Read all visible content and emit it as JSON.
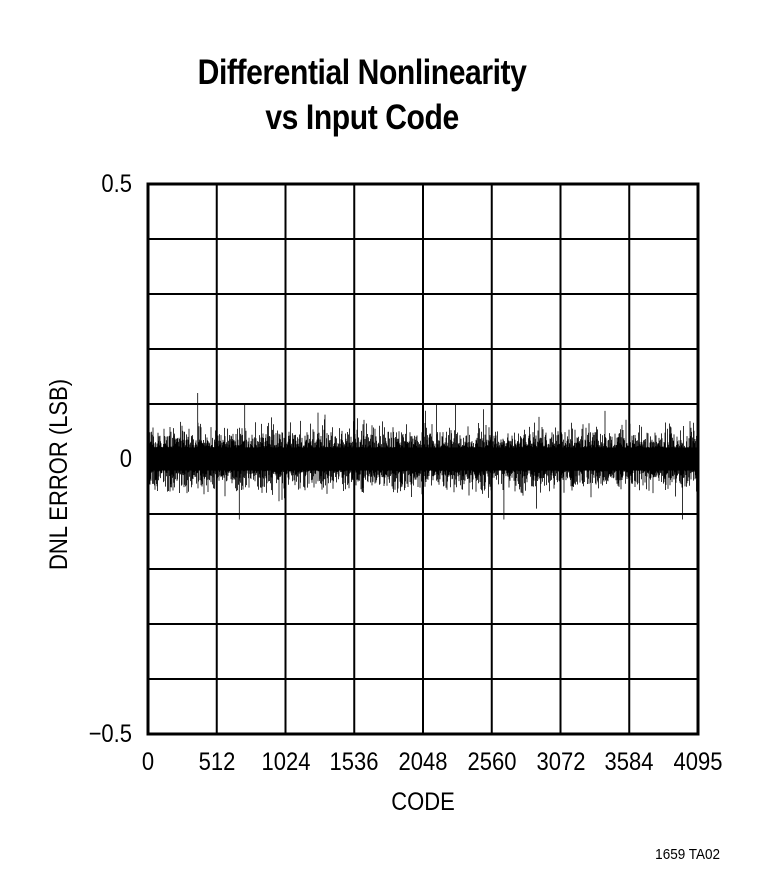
{
  "chart_data": {
    "type": "line",
    "title": "Differential Nonlinearity vs Input Code",
    "title_lines": [
      "Differential Nonlinearity",
      "vs Input Code"
    ],
    "xlabel": "CODE",
    "ylabel": "DNL ERROR (LSB)",
    "xlim": [
      0,
      4095
    ],
    "ylim": [
      -0.5,
      0.5
    ],
    "x_ticks": [
      0,
      512,
      1024,
      1536,
      2048,
      2560,
      3072,
      3584,
      4095
    ],
    "x_tick_labels": [
      "0",
      "512",
      "1024",
      "1536",
      "2048",
      "2560",
      "3072",
      "3584",
      "4095"
    ],
    "y_tick_labels": [
      {
        "value": 0.5,
        "label": "0.5"
      },
      {
        "value": 0,
        "label": "0"
      },
      {
        "value": -0.5,
        "label": "−0.5"
      }
    ],
    "grid": {
      "on": true,
      "x_divisions": 8,
      "y_divisions": 10
    },
    "legend": null,
    "series": [
      {
        "name": "DNL",
        "description": "Dense noise-like DNL error across all 4096 codes, centered at 0 LSB",
        "x_range": [
          0,
          4095
        ],
        "typical_band": [
          -0.07,
          0.07
        ],
        "max_value": 0.12,
        "min_value": -0.11,
        "notable_peaks": [
          {
            "x": 370,
            "y": 0.12
          },
          {
            "x": 720,
            "y": 0.1
          },
          {
            "x": 2290,
            "y": 0.1
          },
          {
            "x": 680,
            "y": -0.11
          },
          {
            "x": 2650,
            "y": -0.11
          },
          {
            "x": 3980,
            "y": -0.11
          }
        ],
        "color": "#000000"
      }
    ],
    "figure_id": "1659 TA02"
  }
}
